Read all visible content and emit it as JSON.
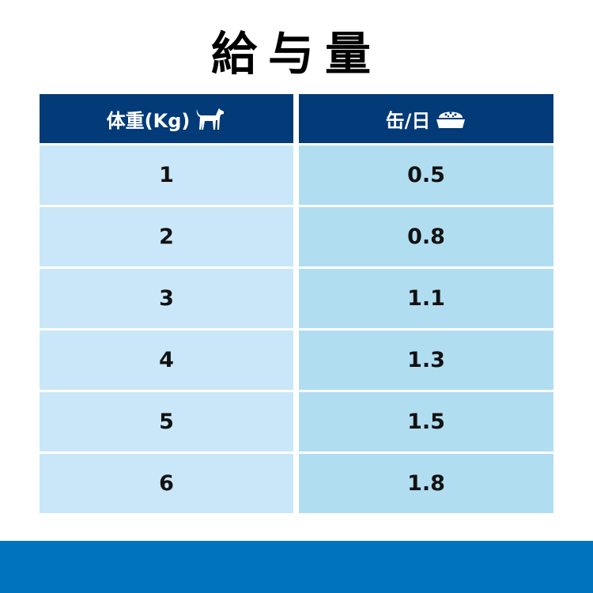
{
  "title": "給与量",
  "header": {
    "weight": "体重(Kg)",
    "cans": "缶/日",
    "weight_icon": "dog-icon",
    "cans_icon": "food-bowl-icon"
  },
  "rows": [
    {
      "weight": "1",
      "cans": "0.5"
    },
    {
      "weight": "2",
      "cans": "0.8"
    },
    {
      "weight": "3",
      "cans": "1.1"
    },
    {
      "weight": "4",
      "cans": "1.3"
    },
    {
      "weight": "5",
      "cans": "1.5"
    },
    {
      "weight": "6",
      "cans": "1.8"
    }
  ],
  "colors": {
    "header": "#033a78",
    "left_cell": "#c9e7f8",
    "right_cell": "#b1ddf1",
    "footer_bar": "#0073be"
  }
}
